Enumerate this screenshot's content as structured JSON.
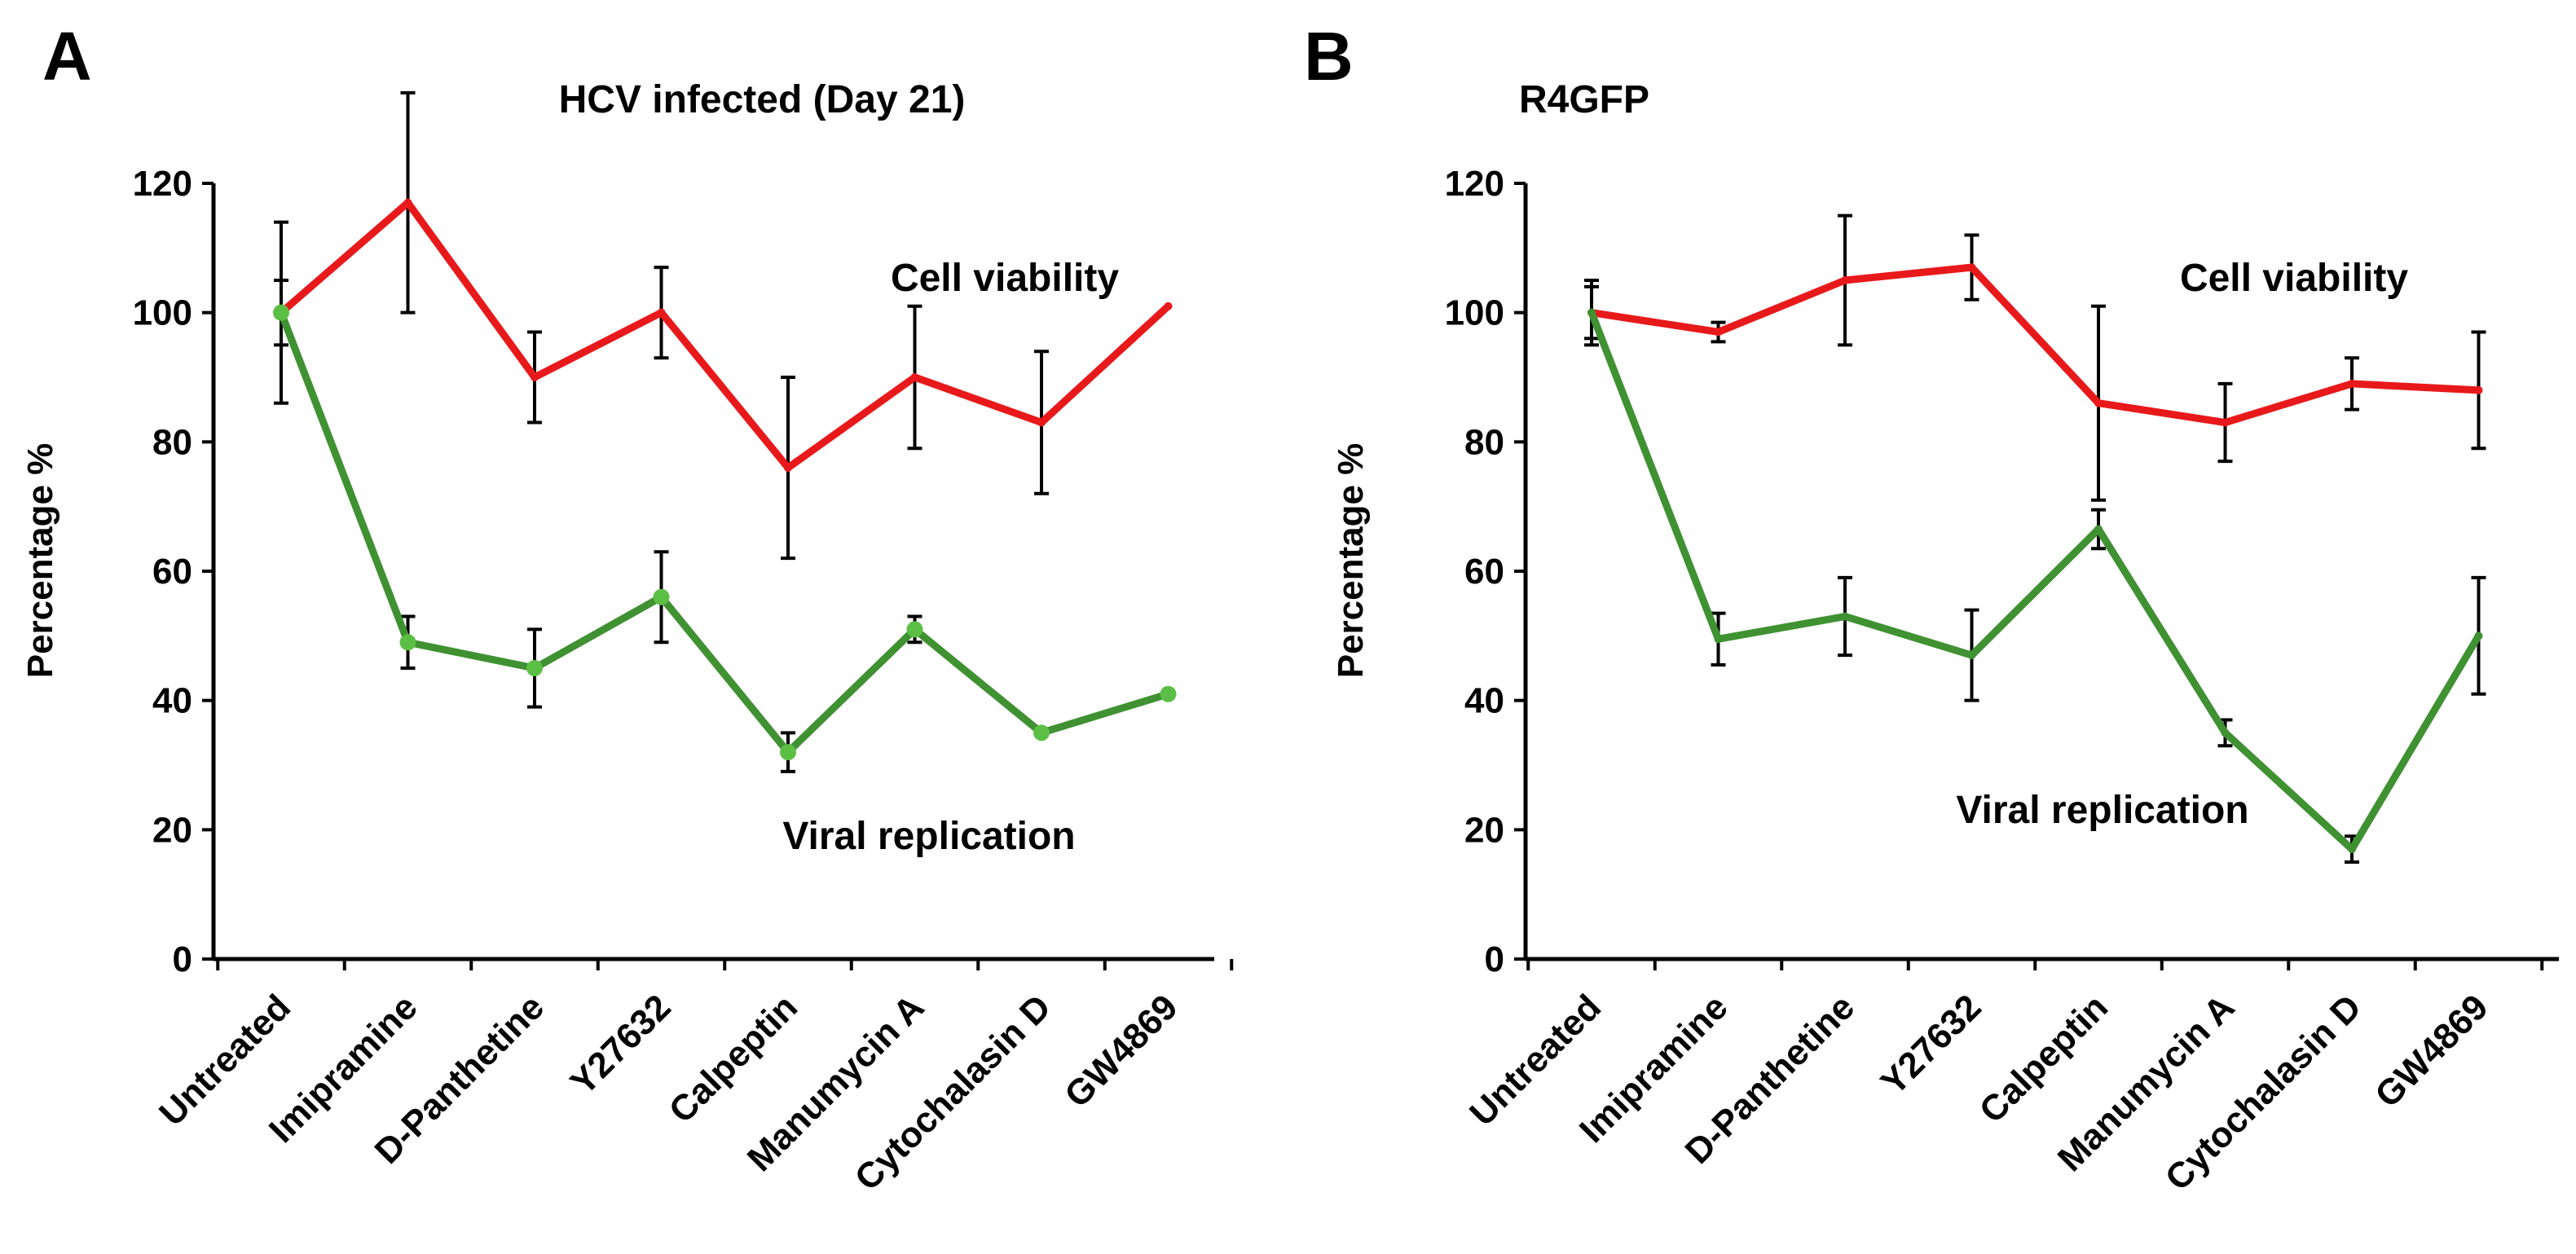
{
  "chart_data": [
    {
      "panel": "A",
      "type": "line",
      "title": "HCV infected (Day 21)",
      "xlabel": "",
      "ylabel": "Percentage %",
      "ylim": [
        0,
        120
      ],
      "yticks": [
        0,
        20,
        40,
        60,
        80,
        100,
        120
      ],
      "categories": [
        "Untreated",
        "Imipramine",
        "D-Panthetine",
        "Y27632",
        "Calpeptin",
        "Manumycin A",
        "Cytochalasin D",
        "GW4869"
      ],
      "series": [
        {
          "name": "Cell viability",
          "color": "#e8191b",
          "values": [
            100,
            117,
            90,
            100,
            76,
            90,
            83,
            101
          ],
          "errors": [
            14,
            17,
            7,
            7,
            14,
            11,
            11,
            0
          ],
          "markers": false
        },
        {
          "name": "Viral replication",
          "color": "#3f9132",
          "values": [
            100,
            49,
            45,
            56,
            32,
            51,
            35,
            41
          ],
          "errors": [
            5,
            4,
            6,
            7,
            3,
            2,
            0,
            0
          ],
          "markers": true
        }
      ]
    },
    {
      "panel": "B",
      "type": "line",
      "title": "R4GFP",
      "xlabel": "",
      "ylabel": "Percentage %",
      "ylim": [
        0,
        120
      ],
      "yticks": [
        0,
        20,
        40,
        60,
        80,
        100,
        120
      ],
      "categories": [
        "Untreated",
        "Imipramine",
        "D-Panthetine",
        "Y27632",
        "Calpeptin",
        "Manumycin A",
        "Cytochalasin D",
        "GW4869"
      ],
      "series": [
        {
          "name": "Cell viability",
          "color": "#e8191b",
          "values": [
            100,
            97,
            105,
            107,
            86,
            83,
            89,
            88
          ],
          "errors": [
            5,
            1.5,
            10,
            5,
            15,
            6,
            4,
            9
          ],
          "markers": false
        },
        {
          "name": "Viral replication",
          "color": "#3f9132",
          "values": [
            100,
            49.5,
            53,
            47,
            66.5,
            35,
            17,
            50
          ],
          "errors": [
            4,
            4,
            6,
            7,
            3,
            2,
            2,
            9
          ],
          "markers": false
        }
      ]
    }
  ]
}
